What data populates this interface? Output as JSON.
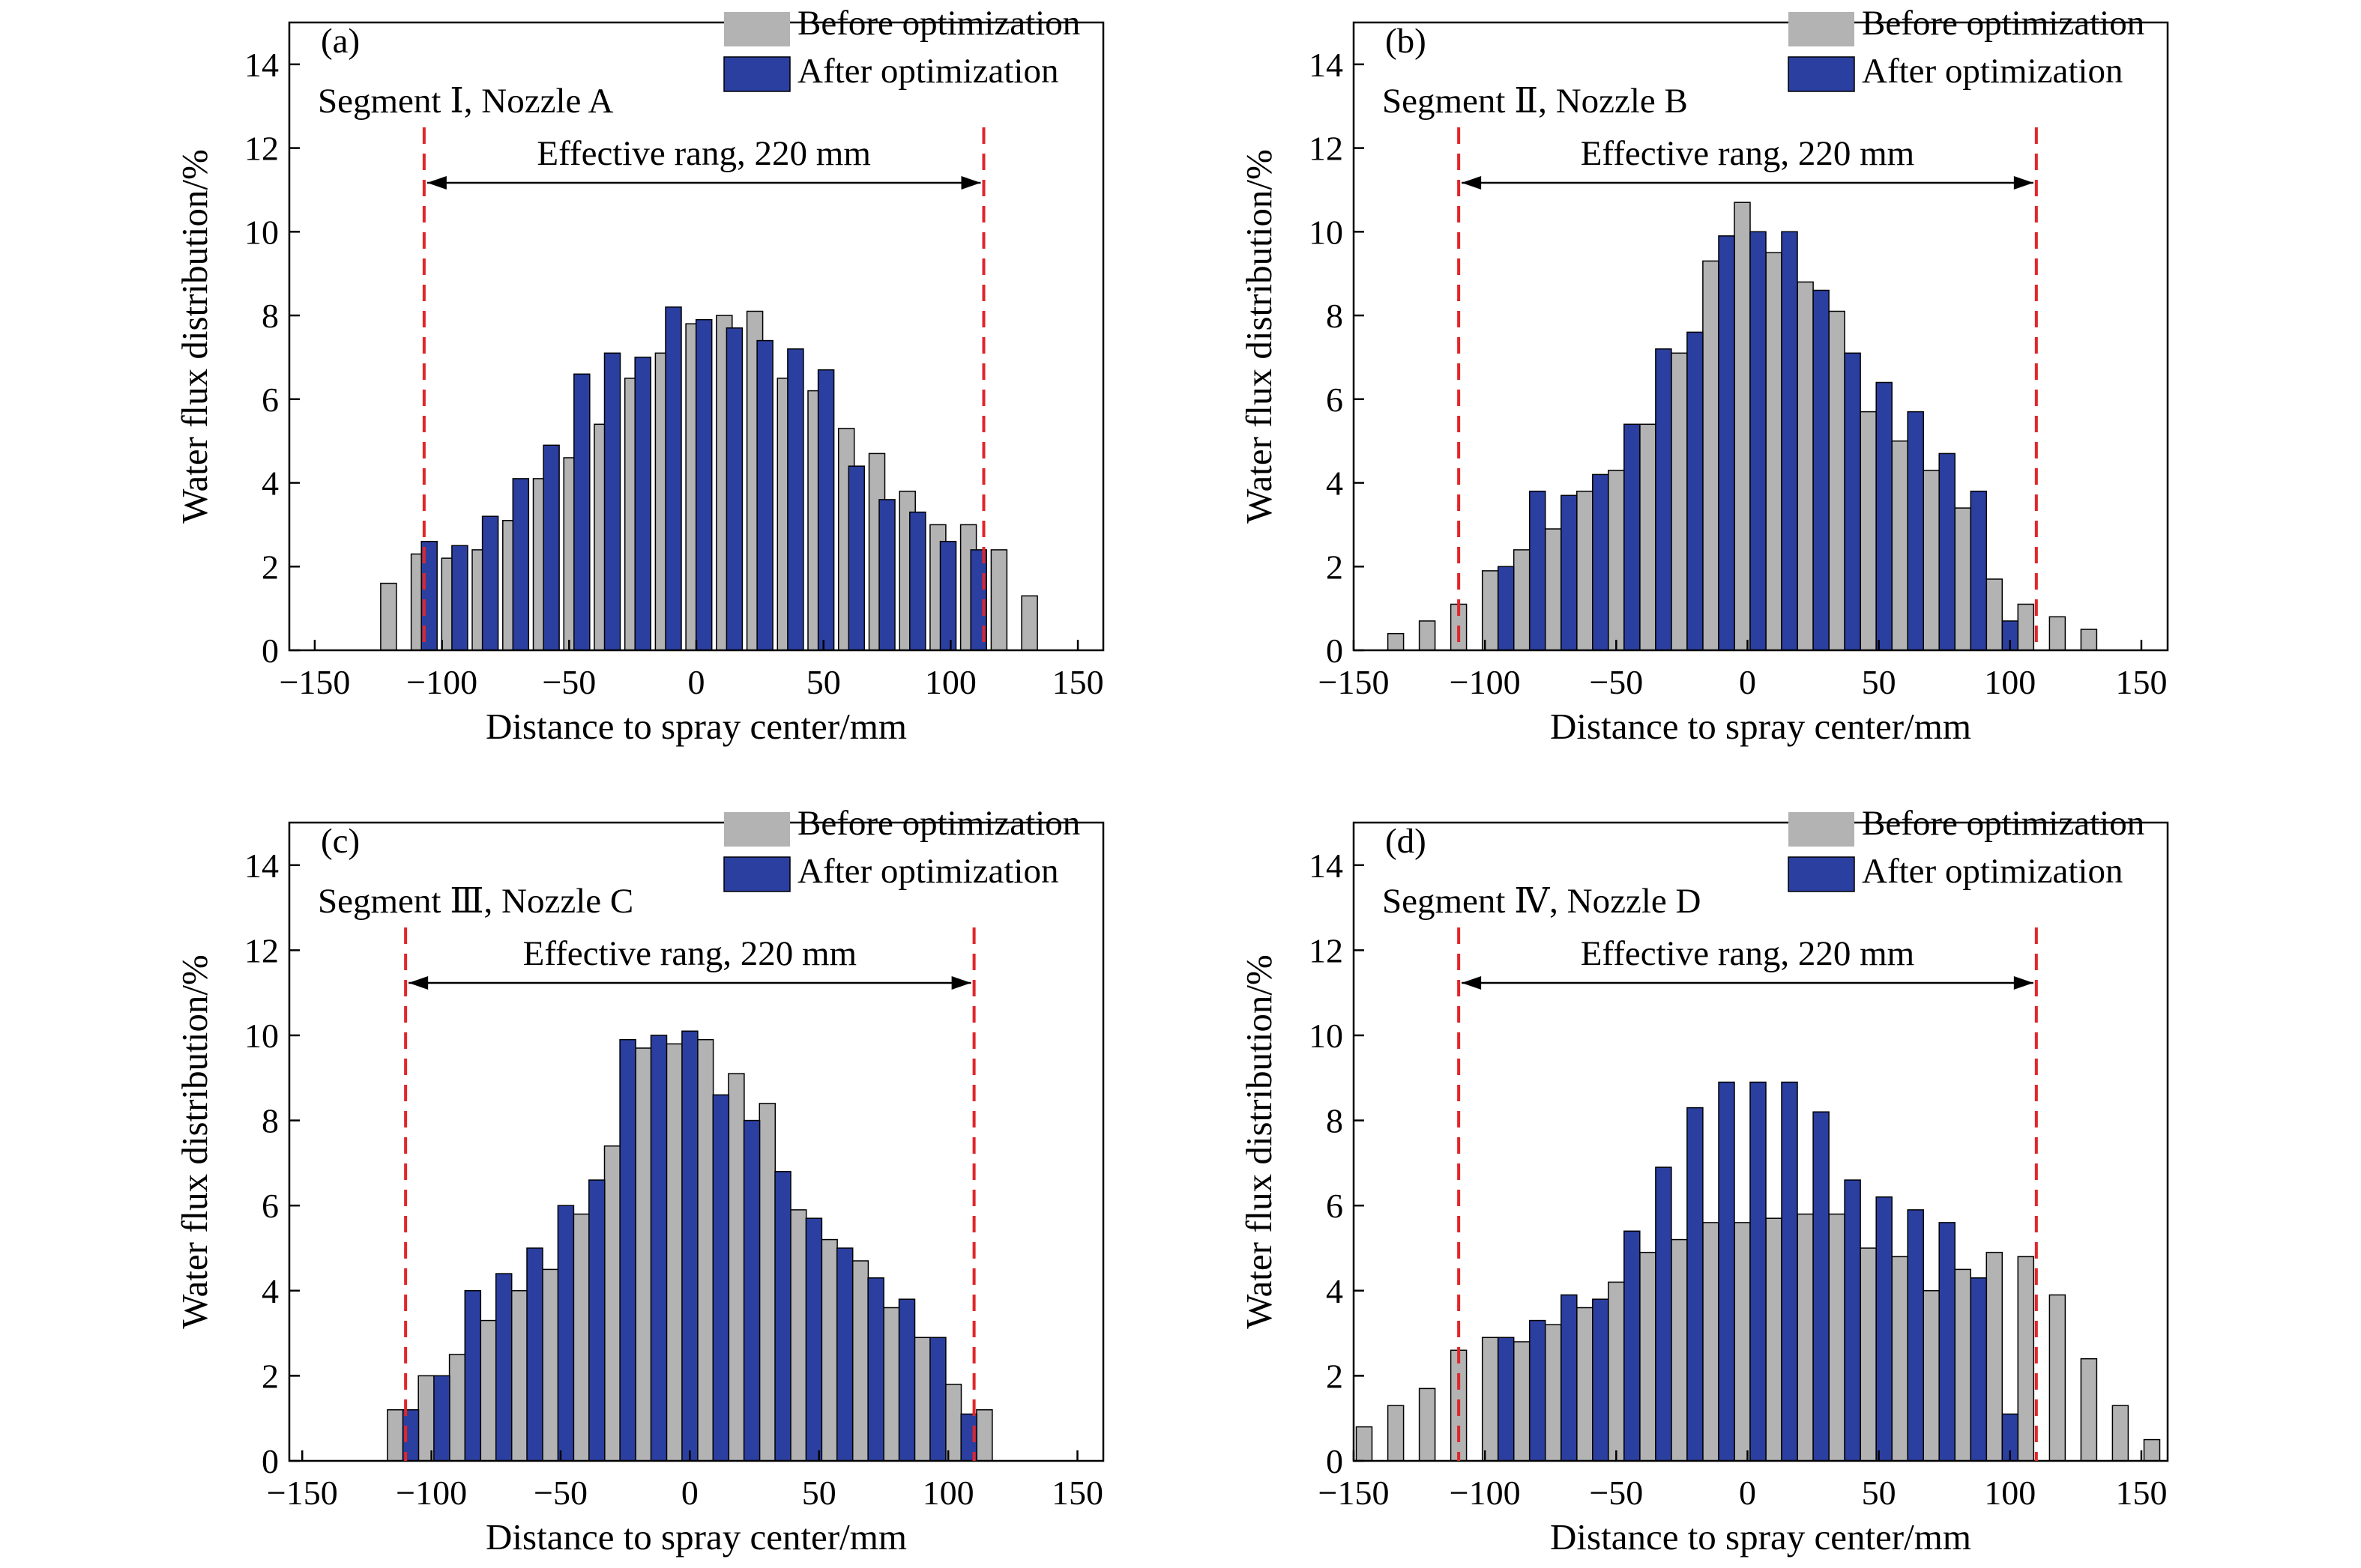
{
  "legend": {
    "before_label": "Before optimization",
    "after_label": "After optimization"
  },
  "colors": {
    "before": "#b3b3b3",
    "after": "#2b3fa0",
    "range_line": "#e0262a",
    "axis": "#000000"
  },
  "chart_data": [
    {
      "type": "bar",
      "tag": "(a)",
      "subtitle": "Segment Ⅰ, Nozzle A",
      "xlabel": "Distance to spray center/mm",
      "ylabel": "Water flux distribution/%",
      "xlim": [
        -160,
        160
      ],
      "ylim": [
        0,
        15
      ],
      "xticks": [
        -150,
        -100,
        -50,
        0,
        50,
        100,
        150
      ],
      "yticks": [
        0,
        2,
        4,
        6,
        8,
        10,
        12,
        14
      ],
      "effective_range": {
        "label": "Effective rang, 220 mm",
        "start": -107,
        "end": 113
      },
      "legend_position": "top-right",
      "series": [
        {
          "name": "Before optimization",
          "x": [
            -121,
            -109,
            -97,
            -85,
            -73,
            -61,
            -49,
            -37,
            -25,
            -13,
            -1,
            11,
            23,
            35,
            47,
            59,
            71,
            83,
            95,
            107,
            119,
            131
          ],
          "values": [
            1.6,
            2.3,
            2.2,
            2.4,
            3.1,
            4.1,
            4.6,
            5.4,
            6.5,
            7.1,
            7.8,
            8.0,
            8.1,
            6.5,
            6.2,
            5.3,
            4.7,
            3.8,
            3.0,
            3.0,
            2.4,
            1.3
          ]
        },
        {
          "name": "After optimization",
          "x": [
            -105,
            -93,
            -81,
            -69,
            -57,
            -45,
            -33,
            -21,
            -9,
            3,
            15,
            27,
            39,
            51,
            63,
            75,
            87,
            99,
            111
          ],
          "values": [
            2.6,
            2.5,
            3.2,
            4.1,
            4.9,
            6.6,
            7.1,
            7.0,
            8.2,
            7.9,
            7.7,
            7.4,
            7.2,
            6.7,
            4.4,
            3.6,
            3.3,
            2.6,
            2.4
          ]
        }
      ]
    },
    {
      "type": "bar",
      "tag": "(b)",
      "subtitle": "Segment Ⅱ, Nozzle B",
      "xlabel": "Distance to spray center/mm",
      "ylabel": "Water flux distribution/%",
      "xlim": [
        -150,
        160
      ],
      "ylim": [
        0,
        15
      ],
      "xticks": [
        -150,
        -100,
        -50,
        0,
        50,
        100,
        150
      ],
      "yticks": [
        0,
        2,
        4,
        6,
        8,
        10,
        12,
        14
      ],
      "effective_range": {
        "label": "Effective rang, 220 mm",
        "start": -110,
        "end": 110
      },
      "legend_position": "top-right",
      "series": [
        {
          "name": "Before optimization",
          "x": [
            -134,
            -122,
            -110,
            -98,
            -86,
            -74,
            -62,
            -50,
            -38,
            -26,
            -14,
            -2,
            10,
            22,
            34,
            46,
            58,
            70,
            82,
            94,
            106,
            118,
            130
          ],
          "values": [
            0.4,
            0.7,
            1.1,
            1.9,
            2.4,
            2.9,
            3.8,
            4.3,
            5.4,
            7.1,
            9.3,
            10.7,
            9.5,
            8.8,
            8.1,
            5.7,
            5.0,
            4.3,
            3.4,
            1.7,
            1.1,
            0.8,
            0.5
          ]
        },
        {
          "name": "After optimization",
          "x": [
            -92,
            -80,
            -68,
            -56,
            -44,
            -32,
            -20,
            -8,
            4,
            16,
            28,
            40,
            52,
            64,
            76,
            88,
            100
          ],
          "values": [
            2.0,
            3.8,
            3.7,
            4.2,
            5.4,
            7.2,
            7.6,
            9.9,
            10.0,
            10.0,
            8.6,
            7.1,
            6.4,
            5.7,
            4.7,
            3.8,
            0.7
          ]
        }
      ]
    },
    {
      "type": "bar",
      "tag": "(c)",
      "subtitle": "Segment Ⅲ, Nozzle C",
      "xlabel": "Distance to spray center/mm",
      "ylabel": "Water flux distribution/%",
      "xlim": [
        -155,
        160
      ],
      "ylim": [
        0,
        15
      ],
      "xticks": [
        -150,
        -100,
        -50,
        0,
        50,
        100,
        150
      ],
      "yticks": [
        0,
        2,
        4,
        6,
        8,
        10,
        12,
        14
      ],
      "effective_range": {
        "label": "Effective rang, 220 mm",
        "start": -110,
        "end": 110
      },
      "legend_position": "top-right",
      "series": [
        {
          "name": "Before optimization",
          "x": [
            -114,
            -102,
            -90,
            -78,
            -66,
            -54,
            -42,
            -30,
            -18,
            -6,
            6,
            18,
            30,
            42,
            54,
            66,
            78,
            90,
            102,
            114
          ],
          "values": [
            1.2,
            2.0,
            2.5,
            3.3,
            4.0,
            4.5,
            5.8,
            7.4,
            9.7,
            9.8,
            9.9,
            9.1,
            8.4,
            5.9,
            5.2,
            4.7,
            3.6,
            2.9,
            1.8,
            1.2
          ]
        },
        {
          "name": "After optimization",
          "x": [
            -108,
            -96,
            -84,
            -72,
            -60,
            -48,
            -36,
            -24,
            -12,
            0,
            12,
            24,
            36,
            48,
            60,
            72,
            84,
            96,
            108
          ],
          "values": [
            1.2,
            2.0,
            4.0,
            4.4,
            5.0,
            6.0,
            6.6,
            9.9,
            10.0,
            10.1,
            8.6,
            8.0,
            6.8,
            5.7,
            5.0,
            4.3,
            3.8,
            2.9,
            1.1
          ]
        }
      ]
    },
    {
      "type": "bar",
      "tag": "(d)",
      "subtitle": "Segment Ⅳ, Nozzle D",
      "xlabel": "Distance to spray center/mm",
      "ylabel": "Water flux distribution/%",
      "xlim": [
        -150,
        160
      ],
      "ylim": [
        0,
        15
      ],
      "xticks": [
        -150,
        -100,
        -50,
        0,
        50,
        100,
        150
      ],
      "yticks": [
        0,
        2,
        4,
        6,
        8,
        10,
        12,
        14
      ],
      "effective_range": {
        "label": "Effective rang, 220 mm",
        "start": -110,
        "end": 110
      },
      "legend_position": "top-right",
      "series": [
        {
          "name": "Before optimization",
          "x": [
            -146,
            -134,
            -122,
            -110,
            -98,
            -86,
            -74,
            -62,
            -50,
            -38,
            -26,
            -14,
            -2,
            10,
            22,
            34,
            46,
            58,
            70,
            82,
            94,
            106,
            118,
            130,
            142,
            154
          ],
          "values": [
            0.8,
            1.3,
            1.7,
            2.6,
            2.9,
            2.8,
            3.2,
            3.6,
            4.2,
            4.9,
            5.2,
            5.6,
            5.6,
            5.7,
            5.8,
            5.8,
            5.0,
            4.8,
            4.0,
            4.5,
            4.9,
            4.8,
            3.9,
            2.4,
            1.3,
            0.5
          ]
        },
        {
          "name": "After optimization",
          "x": [
            -92,
            -80,
            -68,
            -56,
            -44,
            -32,
            -20,
            -8,
            4,
            16,
            28,
            40,
            52,
            64,
            76,
            88,
            100
          ],
          "values": [
            2.9,
            3.3,
            3.9,
            3.8,
            5.4,
            6.9,
            8.3,
            8.9,
            8.9,
            8.9,
            8.2,
            6.6,
            6.2,
            5.9,
            5.6,
            4.3,
            1.1
          ]
        }
      ]
    }
  ]
}
